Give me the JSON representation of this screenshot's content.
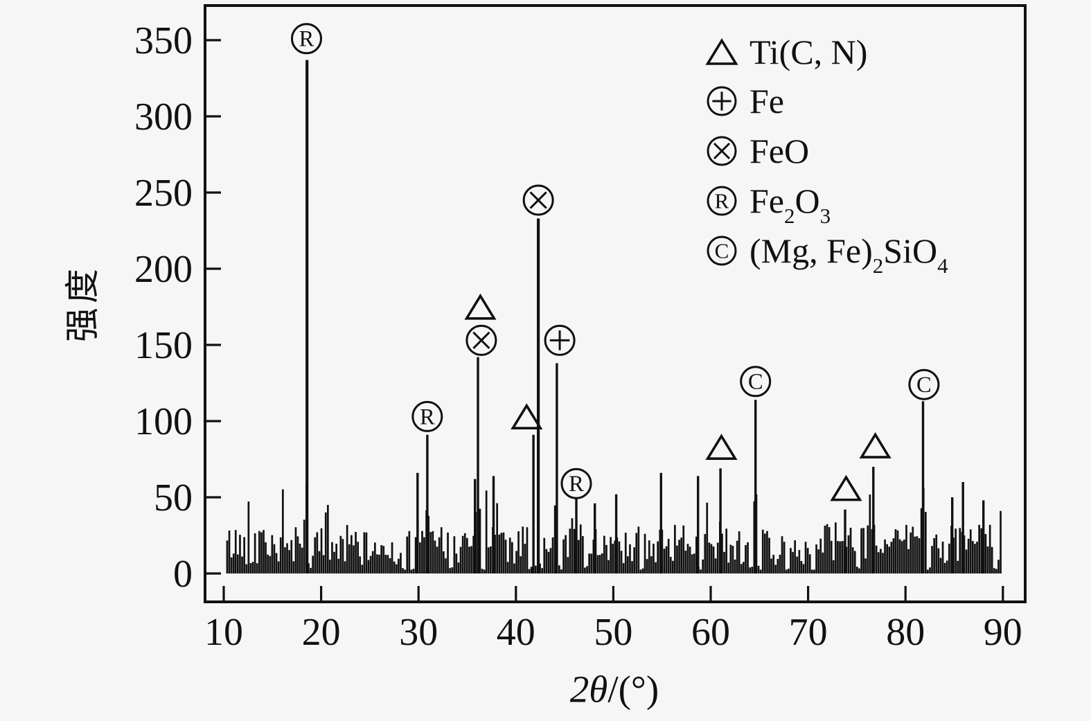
{
  "figure": {
    "kind": "XRD diffraction pattern",
    "background_color": "#f6f6f6",
    "ink_color": "#111111"
  },
  "chart_data": {
    "type": "line",
    "title": "",
    "xlabel": "2θ/(°)",
    "xlabel_parts": [
      {
        "t": "2θ",
        "italic": true
      },
      {
        "t": "/(°)",
        "italic": false
      }
    ],
    "ylabel": "强度",
    "xlim": [
      10,
      90
    ],
    "ylim": [
      0,
      372
    ],
    "x_ticks": [
      10,
      20,
      30,
      40,
      50,
      60,
      70,
      80,
      90
    ],
    "y_ticks": [
      0,
      50,
      100,
      150,
      200,
      250,
      300,
      350
    ],
    "grid": false,
    "legend_position": "top-right",
    "legend": [
      {
        "symbol": "triangle",
        "label": "Ti(C, N)",
        "segments": [
          {
            "t": "Ti(C, N)"
          }
        ]
      },
      {
        "symbol": "circle-plus",
        "label": "Fe",
        "segments": [
          {
            "t": "Fe"
          }
        ]
      },
      {
        "symbol": "circle-X",
        "label": "FeO",
        "segments": [
          {
            "t": "FeO"
          }
        ]
      },
      {
        "symbol": "circle-R",
        "label": "Fe2O3",
        "segments": [
          {
            "t": "Fe"
          },
          {
            "t": "2",
            "sub": true
          },
          {
            "t": "O"
          },
          {
            "t": "3",
            "sub": true
          }
        ]
      },
      {
        "symbol": "circle-C",
        "label": "(Mg, Fe)2SiO4",
        "segments": [
          {
            "t": "(Mg, Fe)"
          },
          {
            "t": "2",
            "sub": true
          },
          {
            "t": "SiO"
          },
          {
            "t": "4",
            "sub": true
          }
        ]
      }
    ],
    "peaks": [
      [
        18.55,
        337
      ],
      [
        29.9,
        66
      ],
      [
        30.9,
        91
      ],
      [
        35.8,
        62
      ],
      [
        36.1,
        142
      ],
      [
        37.7,
        64
      ],
      [
        41.8,
        91
      ],
      [
        42.3,
        233
      ],
      [
        44.2,
        138
      ],
      [
        46.2,
        50
      ],
      [
        48.1,
        46
      ],
      [
        50.3,
        52
      ],
      [
        54.9,
        66
      ],
      [
        58.7,
        64
      ],
      [
        61.0,
        69
      ],
      [
        64.6,
        114
      ],
      [
        73.8,
        42
      ],
      [
        76.7,
        70
      ],
      [
        81.8,
        113
      ],
      [
        84.8,
        50
      ],
      [
        85.9,
        60
      ],
      [
        88.0,
        48
      ]
    ],
    "annotations": [
      {
        "marker": "circle-R",
        "phase": "Fe2O3",
        "x": 18.5,
        "y": 351
      },
      {
        "marker": "circle-R",
        "phase": "Fe2O3",
        "x": 30.9,
        "y": 103
      },
      {
        "marker": "triangle",
        "phase": "Ti(C, N)",
        "x": 36.35,
        "y": 174
      },
      {
        "marker": "circle-X",
        "phase": "FeO",
        "x": 36.45,
        "y": 153
      },
      {
        "marker": "triangle",
        "phase": "Ti(C, N)",
        "x": 41.1,
        "y": 102
      },
      {
        "marker": "circle-X",
        "phase": "FeO",
        "x": 42.3,
        "y": 245
      },
      {
        "marker": "circle-plus",
        "phase": "Fe",
        "x": 44.5,
        "y": 153
      },
      {
        "marker": "circle-R",
        "phase": "Fe2O3",
        "x": 46.2,
        "y": 59
      },
      {
        "marker": "triangle",
        "phase": "Ti(C, N)",
        "x": 61.1,
        "y": 82
      },
      {
        "marker": "circle-C",
        "phase": "(Mg, Fe)2SiO4",
        "x": 64.6,
        "y": 126
      },
      {
        "marker": "triangle",
        "phase": "Ti(C, N)",
        "x": 73.9,
        "y": 55
      },
      {
        "marker": "triangle",
        "phase": "Ti(C, N)",
        "x": 76.9,
        "y": 83
      },
      {
        "marker": "circle-C",
        "phase": "(Mg, Fe)2SiO4",
        "x": 81.9,
        "y": 124
      }
    ],
    "noise": {
      "seed": 42,
      "step_deg": 0.22,
      "range_deg": [
        10.35,
        89.8
      ],
      "base_height": [
        6,
        32
      ],
      "spike_chance": 0.13,
      "dips": [
        18.9,
        28.6,
        29.4,
        33.4,
        36.65,
        41.5,
        42.0,
        42.65,
        44.6,
        47.3,
        52.9,
        58.95,
        64.15,
        64.95,
        67.9,
        70.6,
        75.1,
        82.3,
        89.2
      ],
      "envelope": [
        [
          10,
          19,
          1.0
        ],
        [
          19,
          29,
          0.85
        ],
        [
          29,
          47,
          1.0
        ],
        [
          47,
          66,
          1.0
        ],
        [
          66,
          73,
          0.78
        ],
        [
          73,
          90,
          1.0
        ]
      ]
    }
  }
}
